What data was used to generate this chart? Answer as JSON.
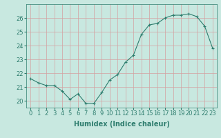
{
  "x": [
    0,
    1,
    2,
    3,
    4,
    5,
    6,
    7,
    8,
    9,
    10,
    11,
    12,
    13,
    14,
    15,
    16,
    17,
    18,
    19,
    20,
    21,
    22,
    23
  ],
  "y": [
    21.6,
    21.3,
    21.1,
    21.1,
    20.7,
    20.1,
    20.5,
    19.8,
    19.8,
    20.6,
    21.5,
    21.9,
    22.8,
    23.3,
    24.8,
    25.5,
    25.6,
    26.0,
    26.2,
    26.2,
    26.3,
    26.1,
    25.4,
    23.8
  ],
  "line_color": "#2e7d6e",
  "marker": "+",
  "marker_size": 3,
  "bg_color": "#c8e8e0",
  "grid_color": "#d4a0a0",
  "xlabel": "Humidex (Indice chaleur)",
  "ylim": [
    19.5,
    27.0
  ],
  "xlim": [
    -0.5,
    23.5
  ],
  "yticks": [
    20,
    21,
    22,
    23,
    24,
    25,
    26
  ],
  "xticks": [
    0,
    1,
    2,
    3,
    4,
    5,
    6,
    7,
    8,
    9,
    10,
    11,
    12,
    13,
    14,
    15,
    16,
    17,
    18,
    19,
    20,
    21,
    22,
    23
  ],
  "label_fontsize": 7,
  "tick_fontsize": 6,
  "tick_color": "#2e7d6e",
  "label_color": "#2e7d6e"
}
